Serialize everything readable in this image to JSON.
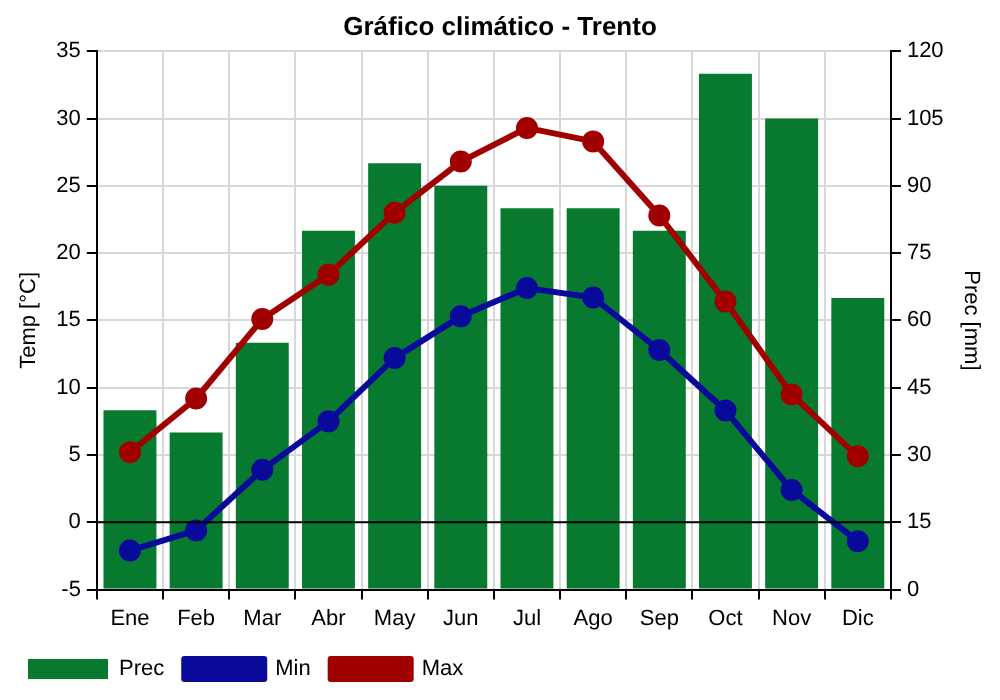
{
  "chart_data": {
    "type": "bar",
    "title": "Gráfico climático - Trento",
    "ylabel": "Temp [°C]",
    "y2label": "Prec [mm]",
    "categories": [
      "Ene",
      "Feb",
      "Mar",
      "Abr",
      "May",
      "Jun",
      "Jul",
      "Ago",
      "Sep",
      "Oct",
      "Nov",
      "Dic"
    ],
    "series": [
      {
        "name": "Prec",
        "axis": "y2",
        "color": "#077a30",
        "values": [
          40,
          35,
          55,
          80,
          95,
          90,
          85,
          85,
          80,
          115,
          105,
          65
        ]
      },
      {
        "name": "Min",
        "type": "line",
        "color": "#0a0a9a",
        "values": [
          -2.1,
          -0.6,
          3.9,
          7.5,
          12.2,
          15.3,
          17.4,
          16.7,
          12.8,
          8.3,
          2.4,
          -1.4
        ]
      },
      {
        "name": "Max",
        "type": "line",
        "color": "#a00000",
        "values": [
          5.2,
          9.2,
          15.1,
          18.4,
          23.0,
          26.8,
          29.3,
          28.3,
          22.8,
          16.4,
          9.5,
          4.9
        ]
      }
    ],
    "ylim": [
      -5,
      35
    ],
    "yticks": [
      -5,
      0,
      5,
      10,
      15,
      20,
      25,
      30,
      35
    ],
    "y2lim": [
      0,
      120
    ],
    "y2ticks": [
      0,
      15,
      30,
      45,
      60,
      75,
      90,
      105,
      120
    ],
    "ref_lines": [
      {
        "axis": "y",
        "value": 0,
        "color": "#000000"
      }
    ],
    "grid": true,
    "legend": "bottom",
    "marker": "circle",
    "line_style": "solid"
  }
}
